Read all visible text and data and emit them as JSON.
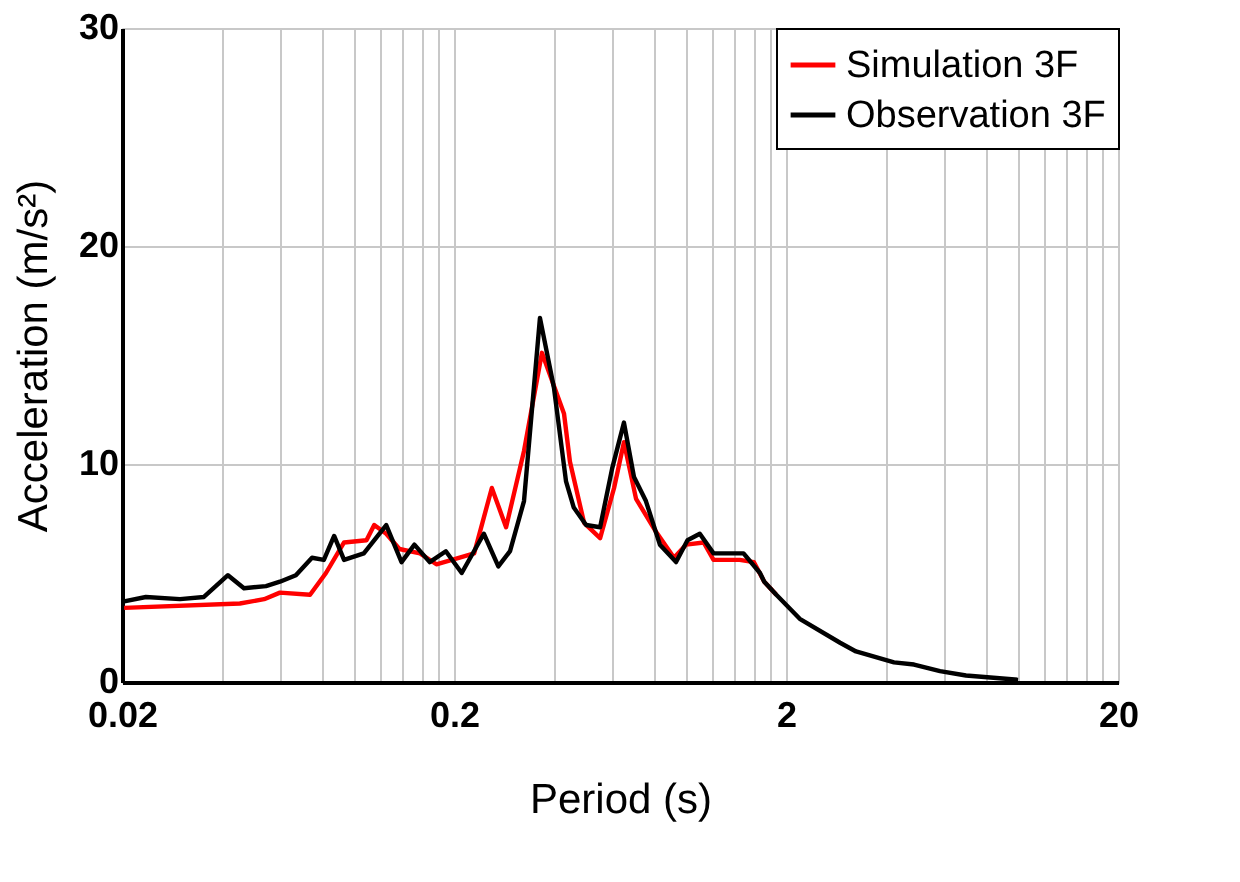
{
  "chart_data": {
    "type": "line",
    "xlabel": "Period (s)",
    "ylabel": "Acceleration (m/s²)",
    "log": "x",
    "grid": true,
    "legend": "top right",
    "line_style": "solid",
    "marker": "none",
    "xlim": [
      0.02,
      20
    ],
    "ylim": [
      0,
      30
    ],
    "yticks": [
      0,
      10,
      20,
      30
    ],
    "xticks": [
      0.02,
      {
        "value": 0.04,
        "label": null
      },
      {
        "value": 0.06,
        "label": null
      },
      {
        "value": 0.08,
        "label": null
      },
      {
        "value": 0.1,
        "label": null
      },
      {
        "value": 0.12,
        "label": null
      },
      {
        "value": 0.14,
        "label": null
      },
      {
        "value": 0.16,
        "label": null
      },
      {
        "value": 0.18,
        "label": null
      },
      0.2,
      {
        "value": 0.4,
        "label": null
      },
      {
        "value": 0.6,
        "label": null
      },
      {
        "value": 0.8,
        "label": null
      },
      {
        "value": 1,
        "label": null
      },
      {
        "value": 1.2,
        "label": null
      },
      {
        "value": 1.4,
        "label": null
      },
      {
        "value": 1.6,
        "label": null
      },
      {
        "value": 1.8,
        "label": null
      },
      2,
      {
        "value": 4,
        "label": null
      },
      {
        "value": 6,
        "label": null
      },
      {
        "value": 8,
        "label": null
      },
      {
        "value": 10,
        "label": null
      },
      {
        "value": 12,
        "label": null
      },
      {
        "value": 14,
        "label": null
      },
      {
        "value": 16,
        "label": null
      },
      {
        "value": 18,
        "label": null
      },
      20
    ],
    "series": [
      {
        "name": "Simulation 3F",
        "color": "#ff0000",
        "x": [
          0.0203,
          0.0453,
          0.0536,
          0.0598,
          0.0737,
          0.0823,
          0.0933,
          0.109,
          0.115,
          0.125,
          0.137,
          0.158,
          0.177,
          0.208,
          0.23,
          0.26,
          0.287,
          0.325,
          0.368,
          0.429,
          0.447,
          0.493,
          0.551,
          0.607,
          0.65,
          0.707,
          0.811,
          0.92,
          1.0,
          1.13,
          1.21,
          1.45,
          1.6,
          1.72,
          1.87
        ],
        "values": [
          3.4,
          3.6,
          3.8,
          4.1,
          4.0,
          5.0,
          6.4,
          6.5,
          7.2,
          6.8,
          6.1,
          5.9,
          5.4,
          5.7,
          5.9,
          8.9,
          7.1,
          10.6,
          15.1,
          12.3,
          10.1,
          7.3,
          6.6,
          8.9,
          11.0,
          8.4,
          6.9,
          5.7,
          6.3,
          6.4,
          5.6,
          5.6,
          5.5,
          4.6,
          4.0
        ]
      },
      {
        "name": "Observation 3F",
        "color": "#000000",
        "x": [
          0.0203,
          0.0236,
          0.0299,
          0.0353,
          0.0417,
          0.0466,
          0.0543,
          0.0598,
          0.0668,
          0.0747,
          0.0811,
          0.0871,
          0.0933,
          0.107,
          0.125,
          0.139,
          0.152,
          0.169,
          0.189,
          0.211,
          0.246,
          0.272,
          0.295,
          0.325,
          0.363,
          0.4,
          0.435,
          0.459,
          0.5,
          0.551,
          0.599,
          0.65,
          0.697,
          0.757,
          0.834,
          0.933,
          1.01,
          1.1,
          1.21,
          1.49,
          1.67,
          1.72,
          1.87,
          2.2,
          2.91,
          3.25,
          4.23,
          4.86,
          5.82,
          6.97,
          10.0
        ],
        "values": [
          3.7,
          3.9,
          3.8,
          3.9,
          4.9,
          4.3,
          4.4,
          4.6,
          4.9,
          5.7,
          5.6,
          6.7,
          5.6,
          5.9,
          7.2,
          5.5,
          6.3,
          5.5,
          6.0,
          5.0,
          6.8,
          5.3,
          6.0,
          8.3,
          16.7,
          13.5,
          9.2,
          8.0,
          7.2,
          7.1,
          9.8,
          11.9,
          9.4,
          8.3,
          6.3,
          5.5,
          6.5,
          6.8,
          5.9,
          5.9,
          5.0,
          4.6,
          4.0,
          2.9,
          1.8,
          1.4,
          0.9,
          0.8,
          0.5,
          0.3,
          0.1
        ]
      }
    ]
  }
}
